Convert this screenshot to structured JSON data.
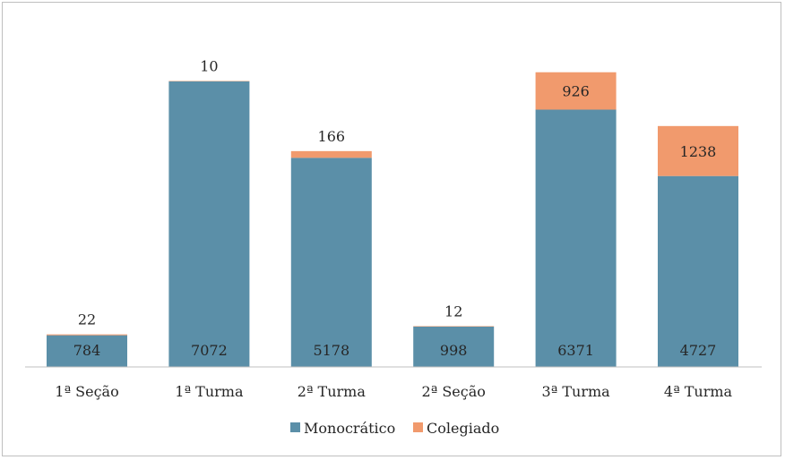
{
  "chart_data": {
    "type": "bar",
    "stacked": true,
    "categories": [
      "1ª Seção",
      "1ª Turma",
      "2ª Turma",
      "2ª Seção",
      "3ª Turma",
      "4ª Turma"
    ],
    "series": [
      {
        "name": "Monocrático",
        "color": "#5b8fa8",
        "values": [
          784,
          7072,
          5178,
          998,
          6371,
          4727
        ]
      },
      {
        "name": "Colegiado",
        "color": "#f19a6d",
        "values": [
          22,
          10,
          166,
          12,
          926,
          1238
        ]
      }
    ],
    "ylim": [
      0,
      8000
    ],
    "grid": false,
    "legend": "bottom",
    "title": "",
    "xlabel": "",
    "ylabel": ""
  }
}
